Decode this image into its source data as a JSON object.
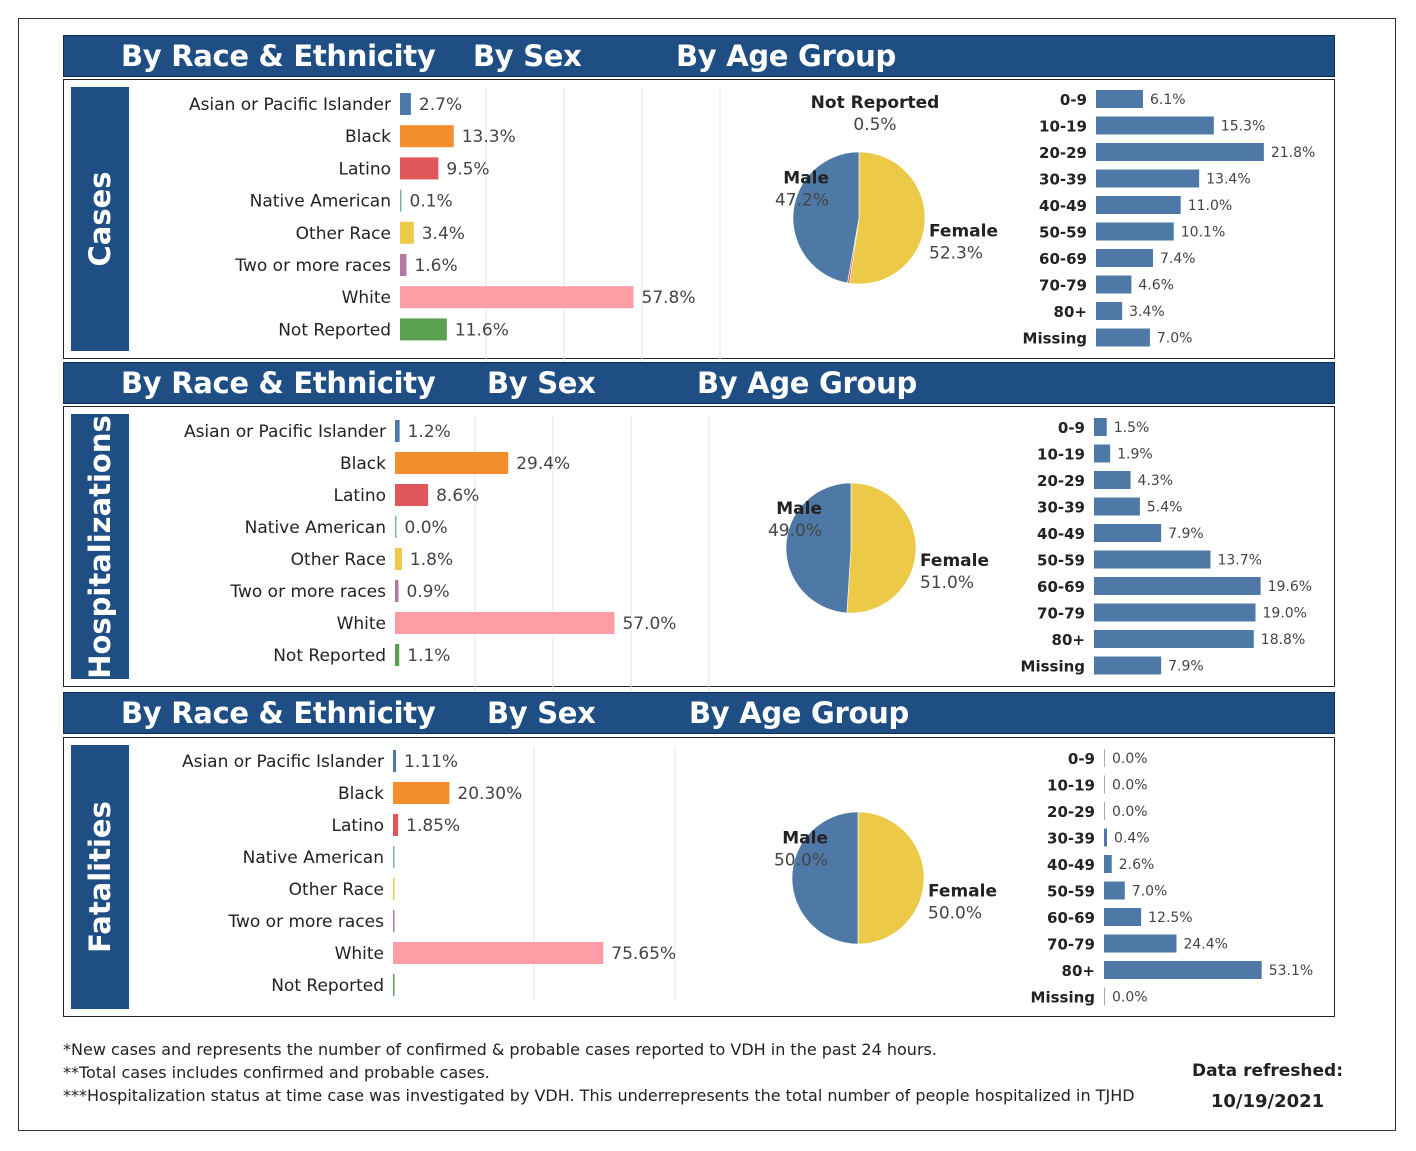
{
  "colors": {
    "header_bg": "#1f4e84",
    "race": [
      "#4e79a7",
      "#f28e2b",
      "#e15759",
      "#76b7b2",
      "#edc948",
      "#b07aa1",
      "#ff9da7",
      "#59a14f"
    ],
    "female": "#edc948",
    "male": "#4e79a7",
    "not_reported": "#e15759",
    "age_bar": "#4e79a7"
  },
  "sections": [
    {
      "title": "Cases",
      "headers": {
        "race": "By Race & Ethnicity",
        "sex": "By Sex",
        "age": "By Age Group"
      },
      "chart_data": [
        {
          "type": "bar",
          "orientation": "horizontal",
          "title": "By Race & Ethnicity",
          "categories": [
            "Asian or Pacific Islander",
            "Black",
            "Latino",
            "Native American",
            "Other Race",
            "Two or more races",
            "White",
            "Not Reported"
          ],
          "values": [
            2.7,
            13.3,
            9.5,
            0.1,
            3.4,
            1.6,
            57.8,
            11.6
          ],
          "labels": [
            "2.7%",
            "13.3%",
            "9.5%",
            "0.1%",
            "3.4%",
            "1.6%",
            "57.8%",
            "11.6%"
          ]
        },
        {
          "type": "pie",
          "title": "By Sex",
          "slices": [
            {
              "name": "Female",
              "value": 52.3,
              "label": "52.3%"
            },
            {
              "name": "Not Reported",
              "value": 0.5,
              "label": "0.5%"
            },
            {
              "name": "Male",
              "value": 47.2,
              "label": "47.2%"
            }
          ]
        },
        {
          "type": "bar",
          "orientation": "horizontal",
          "title": "By Age Group",
          "categories": [
            "0-9",
            "10-19",
            "20-29",
            "30-39",
            "40-49",
            "50-59",
            "60-69",
            "70-79",
            "80+",
            "Missing"
          ],
          "values": [
            6.1,
            15.3,
            21.8,
            13.4,
            11.0,
            10.1,
            7.4,
            4.6,
            3.4,
            7.0
          ],
          "labels": [
            "6.1%",
            "15.3%",
            "21.8%",
            "13.4%",
            "11.0%",
            "10.1%",
            "7.4%",
            "4.6%",
            "3.4%",
            "7.0%"
          ]
        }
      ]
    },
    {
      "title": "Hospitalizations",
      "headers": {
        "race": "By Race & Ethnicity",
        "sex": "By Sex",
        "age": "By Age Group"
      },
      "chart_data": [
        {
          "type": "bar",
          "orientation": "horizontal",
          "title": "By Race & Ethnicity",
          "categories": [
            "Asian or Pacific Islander",
            "Black",
            "Latino",
            "Native American",
            "Other Race",
            "Two or more races",
            "White",
            "Not Reported"
          ],
          "values": [
            1.2,
            29.4,
            8.6,
            0.0,
            1.8,
            0.9,
            57.0,
            1.1
          ],
          "labels": [
            "1.2%",
            "29.4%",
            "8.6%",
            "0.0%",
            "1.8%",
            "0.9%",
            "57.0%",
            "1.1%"
          ]
        },
        {
          "type": "pie",
          "title": "By Sex",
          "slices": [
            {
              "name": "Female",
              "value": 51.0,
              "label": "51.0%"
            },
            {
              "name": "Male",
              "value": 49.0,
              "label": "49.0%"
            }
          ]
        },
        {
          "type": "bar",
          "orientation": "horizontal",
          "title": "By Age Group",
          "categories": [
            "0-9",
            "10-19",
            "20-29",
            "30-39",
            "40-49",
            "50-59",
            "60-69",
            "70-79",
            "80+",
            "Missing"
          ],
          "values": [
            1.5,
            1.9,
            4.3,
            5.4,
            7.9,
            13.7,
            19.6,
            19.0,
            18.8,
            7.9
          ],
          "labels": [
            "1.5%",
            "1.9%",
            "4.3%",
            "5.4%",
            "7.9%",
            "13.7%",
            "19.6%",
            "19.0%",
            "18.8%",
            "7.9%"
          ]
        }
      ]
    },
    {
      "title": "Fatalities",
      "headers": {
        "race": "By Race & Ethnicity",
        "sex": "By Sex",
        "age": "By Age Group"
      },
      "chart_data": [
        {
          "type": "bar",
          "orientation": "horizontal",
          "title": "By Race & Ethnicity",
          "categories": [
            "Asian or Pacific Islander",
            "Black",
            "Latino",
            "Native American",
            "Other Race",
            "Two or more races",
            "White",
            "Not Reported"
          ],
          "values": [
            1.11,
            20.3,
            1.85,
            0,
            0,
            0,
            75.65,
            0
          ],
          "labels": [
            "1.11%",
            "20.30%",
            "1.85%",
            "",
            "",
            "",
            "75.65%",
            ""
          ]
        },
        {
          "type": "pie",
          "title": "By Sex",
          "slices": [
            {
              "name": "Female",
              "value": 50.0,
              "label": "50.0%"
            },
            {
              "name": "Male",
              "value": 50.0,
              "label": "50.0%"
            }
          ]
        },
        {
          "type": "bar",
          "orientation": "horizontal",
          "title": "By Age Group",
          "categories": [
            "0-9",
            "10-19",
            "20-29",
            "30-39",
            "40-49",
            "50-59",
            "60-69",
            "70-79",
            "80+",
            "Missing"
          ],
          "values": [
            0.0,
            0.0,
            0.0,
            0.4,
            2.6,
            7.0,
            12.5,
            24.4,
            53.1,
            0.0
          ],
          "labels": [
            "0.0%",
            "0.0%",
            "0.0%",
            "0.4%",
            "2.6%",
            "7.0%",
            "12.5%",
            "24.4%",
            "53.1%",
            "0.0%"
          ]
        }
      ]
    }
  ],
  "footnotes": [
    "*New cases and represents the number of confirmed & probable cases reported to VDH in the past 24 hours.",
    "**Total cases includes confirmed and probable cases.",
    "***Hospitalization status at time case was investigated by VDH. This underrepresents the total number of people hospitalized in TJHD"
  ],
  "refresh": {
    "label": "Data refreshed:",
    "date": "10/19/2021"
  }
}
